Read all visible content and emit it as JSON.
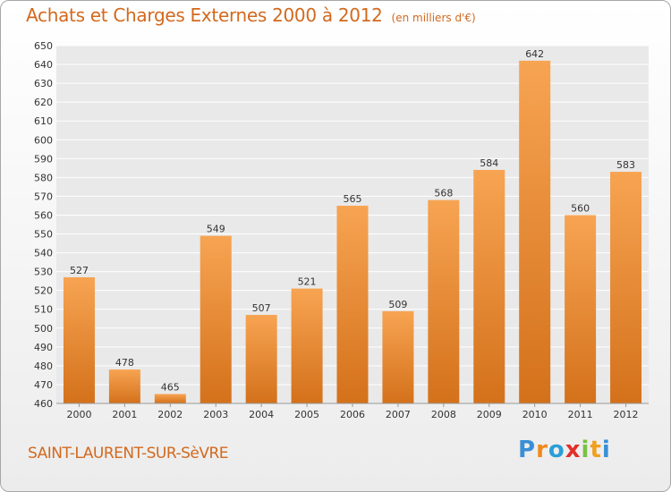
{
  "chart_data": {
    "type": "bar",
    "title": "Achats et Charges Externes 2000 à 2012",
    "subtitle": "(en milliers d'€)",
    "categories": [
      "2000",
      "2001",
      "2002",
      "2003",
      "2004",
      "2005",
      "2006",
      "2007",
      "2008",
      "2009",
      "2010",
      "2011",
      "2012"
    ],
    "values": [
      527,
      478,
      465,
      549,
      507,
      521,
      565,
      509,
      568,
      584,
      642,
      560,
      583
    ],
    "ylim": [
      460,
      650
    ],
    "yticks": [
      460,
      470,
      480,
      490,
      500,
      510,
      520,
      530,
      540,
      550,
      560,
      570,
      580,
      590,
      600,
      610,
      620,
      630,
      640,
      650
    ],
    "grid": true,
    "bar_color": "#f0943a"
  },
  "place_name": "SAINT-LAURENT-SUR-SèVRE",
  "logo": {
    "text": "Proxiti",
    "colors": [
      "#3a8fd6",
      "#f08a1c",
      "#2a9fd8",
      "#e0302a",
      "#7cc043",
      "#f0a020",
      "#3a8fd6"
    ]
  }
}
